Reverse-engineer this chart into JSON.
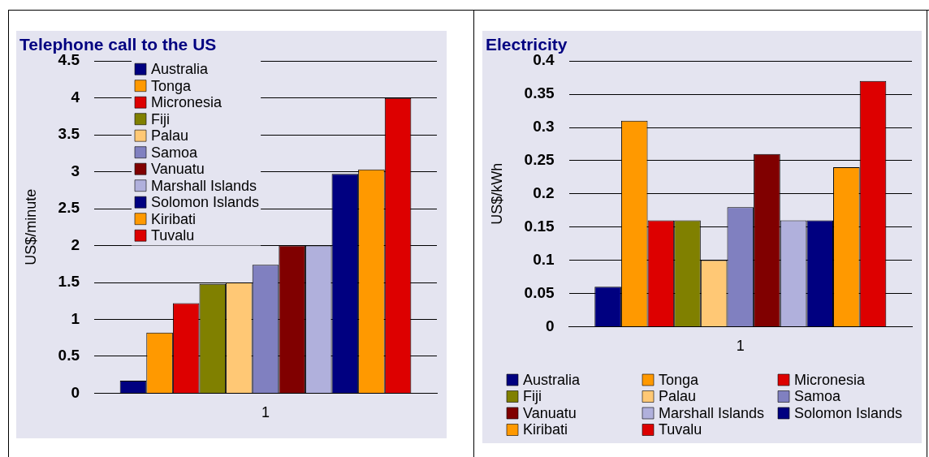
{
  "chart_data": [
    {
      "type": "bar",
      "title": "Telephone call to the US",
      "ylabel": "US$/minute",
      "categories": [
        "1"
      ],
      "ylim": [
        0,
        4.5
      ],
      "yticks": [
        0,
        0.5,
        1,
        1.5,
        2,
        2.5,
        3,
        3.5,
        4,
        4.5
      ],
      "grid": "y",
      "legend": "top left",
      "series": [
        {
          "name": "Australia",
          "color": "#000080",
          "values": [
            0.17
          ]
        },
        {
          "name": "Tonga",
          "color": "#ff9900",
          "values": [
            0.82
          ]
        },
        {
          "name": "Micronesia",
          "color": "#dd0000",
          "values": [
            1.22
          ]
        },
        {
          "name": "Fiji",
          "color": "#808000",
          "values": [
            1.48
          ]
        },
        {
          "name": "Palau",
          "color": "#ffc875",
          "values": [
            1.5
          ]
        },
        {
          "name": "Samoa",
          "color": "#8080c0",
          "values": [
            1.74
          ]
        },
        {
          "name": "Vanuatu",
          "color": "#800000",
          "values": [
            2.0
          ]
        },
        {
          "name": "Marshall Islands",
          "color": "#b0b0dc",
          "values": [
            2.0
          ]
        },
        {
          "name": "Solomon Islands",
          "color": "#000080",
          "values": [
            2.97
          ]
        },
        {
          "name": "Kiribati",
          "color": "#ff9900",
          "values": [
            3.03
          ]
        },
        {
          "name": "Tuvalu",
          "color": "#dd0000",
          "values": [
            4.0
          ]
        }
      ]
    },
    {
      "type": "bar",
      "title": "Electricity",
      "ylabel": "US$/kWh",
      "categories": [
        "1"
      ],
      "ylim": [
        0,
        0.4
      ],
      "yticks": [
        0,
        0.05,
        0.1,
        0.15,
        0.2,
        0.25,
        0.3,
        0.35,
        0.4
      ],
      "grid": "y",
      "legend": "bottom",
      "series": [
        {
          "name": "Australia",
          "color": "#000080",
          "values": [
            0.06
          ]
        },
        {
          "name": "Tonga",
          "color": "#ff9900",
          "values": [
            0.31
          ]
        },
        {
          "name": "Micronesia",
          "color": "#dd0000",
          "values": [
            0.16
          ]
        },
        {
          "name": "Fiji",
          "color": "#808000",
          "values": [
            0.16
          ]
        },
        {
          "name": "Palau",
          "color": "#ffc875",
          "values": [
            0.1
          ]
        },
        {
          "name": "Samoa",
          "color": "#8080c0",
          "values": [
            0.18
          ]
        },
        {
          "name": "Vanuatu",
          "color": "#800000",
          "values": [
            0.26
          ]
        },
        {
          "name": "Marshall Islands",
          "color": "#b0b0dc",
          "values": [
            0.16
          ]
        },
        {
          "name": "Solomon Islands",
          "color": "#000080",
          "values": [
            0.16
          ]
        },
        {
          "name": "Kiribati",
          "color": "#ff9900",
          "values": [
            0.24
          ]
        },
        {
          "name": "Tuvalu",
          "color": "#dd0000",
          "values": [
            0.37
          ]
        }
      ]
    }
  ]
}
